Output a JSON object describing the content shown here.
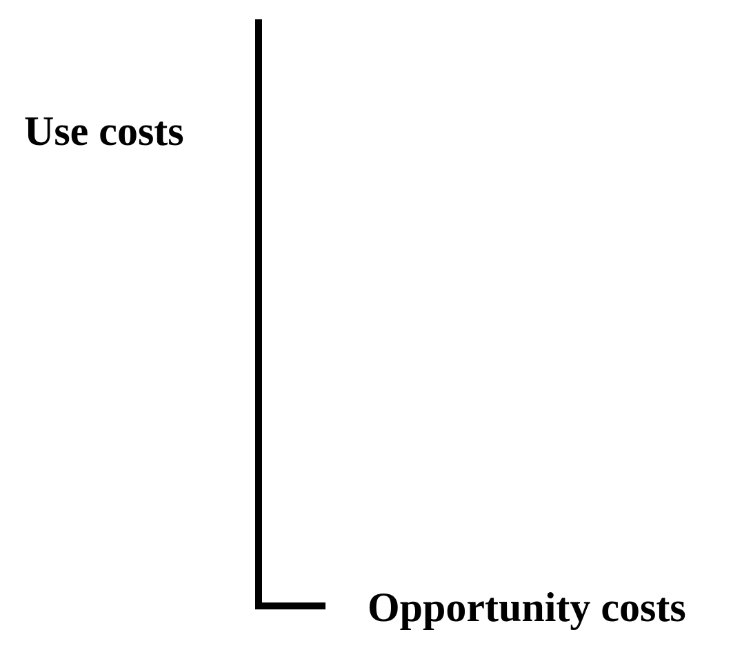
{
  "labels": {
    "vertical": "Use costs",
    "horizontal": "Opportunity costs"
  }
}
